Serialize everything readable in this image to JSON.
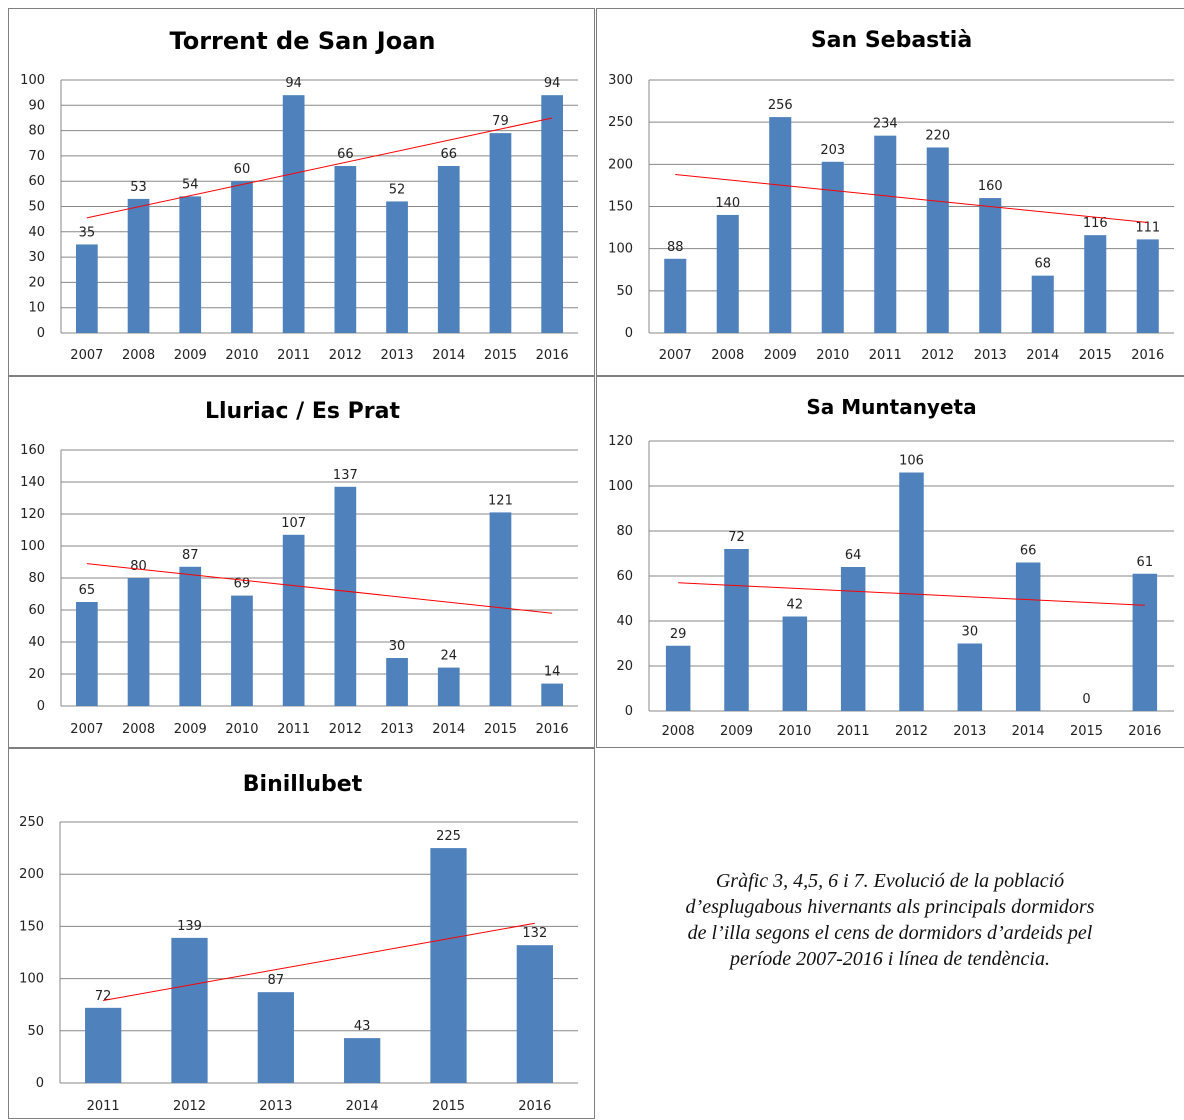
{
  "chart_data": [
    {
      "type": "bar",
      "title": "Torrent de San Joan",
      "categories": [
        "2007",
        "2008",
        "2009",
        "2010",
        "2011",
        "2012",
        "2013",
        "2014",
        "2015",
        "2016"
      ],
      "values": [
        35,
        53,
        54,
        60,
        94,
        66,
        52,
        66,
        79,
        94
      ],
      "ylim": [
        0,
        100
      ],
      "ytick_step": 10,
      "trendline": [
        45.5,
        85
      ],
      "grid": true,
      "legend": "none"
    },
    {
      "type": "bar",
      "title": "San Sebastià",
      "categories": [
        "2007",
        "2008",
        "2009",
        "2010",
        "2011",
        "2012",
        "2013",
        "2014",
        "2015",
        "2016"
      ],
      "values": [
        88,
        140,
        256,
        203,
        234,
        220,
        160,
        68,
        116,
        111
      ],
      "ylim": [
        0,
        300
      ],
      "ytick_step": 50,
      "trendline": [
        188,
        131
      ],
      "grid": true,
      "legend": "none"
    },
    {
      "type": "bar",
      "title": "Lluriac / Es Prat",
      "categories": [
        "2007",
        "2008",
        "2009",
        "2010",
        "2011",
        "2012",
        "2013",
        "2014",
        "2015",
        "2016"
      ],
      "values": [
        65,
        80,
        87,
        69,
        107,
        137,
        30,
        24,
        121,
        14
      ],
      "ylim": [
        0,
        160
      ],
      "ytick_step": 20,
      "trendline": [
        89,
        58
      ],
      "grid": true,
      "legend": "none"
    },
    {
      "type": "bar",
      "title": "Sa Muntanyeta",
      "categories": [
        "2008",
        "2009",
        "2010",
        "2011",
        "2012",
        "2013",
        "2014",
        "2015",
        "2016"
      ],
      "values": [
        29,
        72,
        42,
        64,
        106,
        30,
        66,
        0,
        61
      ],
      "ylim": [
        0,
        120
      ],
      "ytick_step": 20,
      "trendline": [
        57,
        47
      ],
      "grid": true,
      "legend": "none"
    },
    {
      "type": "bar",
      "title": "Binillubet",
      "categories": [
        "2011",
        "2012",
        "2013",
        "2014",
        "2015",
        "2016"
      ],
      "values": [
        72,
        139,
        87,
        43,
        225,
        132
      ],
      "ylim": [
        0,
        250
      ],
      "ytick_step": 50,
      "trendline": [
        79,
        153
      ],
      "grid": true,
      "legend": "none"
    }
  ],
  "colors": {
    "bar": "#4f81bd",
    "trendline": "#ff0000",
    "grid": "#888888",
    "border": "#7f7f7f"
  },
  "caption": "Gràfic 3, 4,5, 6 i 7.  Evolució de la població d’esplugabous hivernants als principals dormidors de l’illa segons el cens de dormidors d’ardeids pel període 2007-2016 i línea de tendència."
}
